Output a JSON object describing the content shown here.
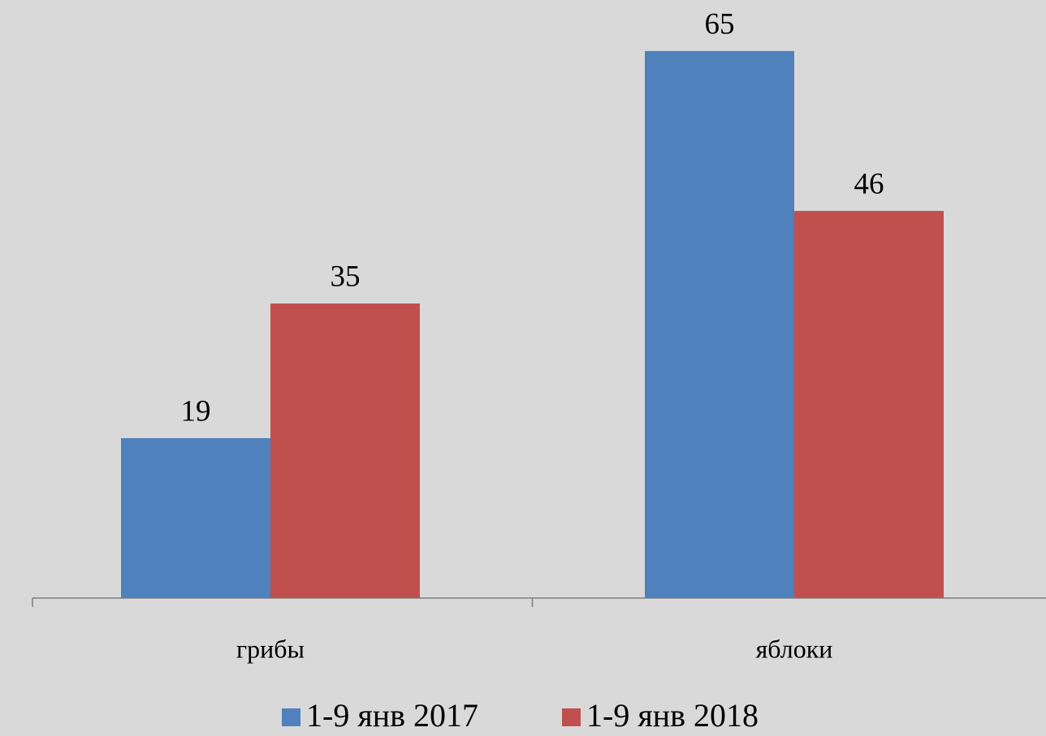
{
  "chart_data": {
    "type": "bar",
    "categories": [
      "грибы",
      "яблоки"
    ],
    "series": [
      {
        "name": "1-9 янв 2017",
        "color": "#4f81bd",
        "values": [
          19,
          65
        ]
      },
      {
        "name": "1-9 янв 2018",
        "color": "#c0504d",
        "values": [
          35,
          46
        ]
      }
    ],
    "ylim": [
      0,
      70
    ]
  }
}
